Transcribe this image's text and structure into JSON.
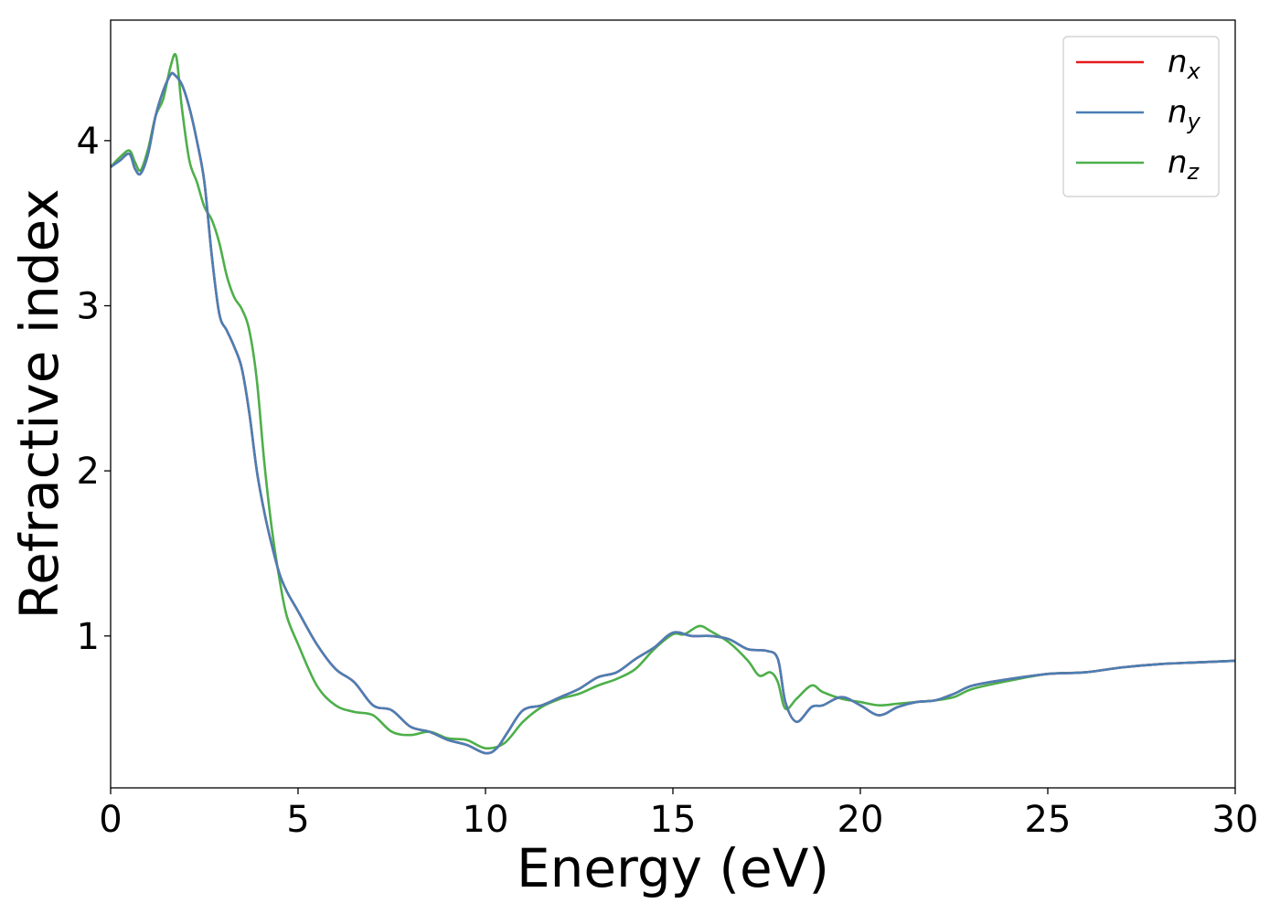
{
  "chart_data": {
    "type": "line",
    "title": "",
    "xlabel": "Energy (eV)",
    "ylabel": "Refractive index",
    "xlim": [
      0,
      30
    ],
    "ylim": [
      0.08,
      4.73
    ],
    "xticks": [
      0,
      5,
      10,
      15,
      20,
      25,
      30
    ],
    "yticks": [
      1,
      2,
      3,
      4
    ],
    "grid": false,
    "legend_position": "top-right",
    "series": [
      {
        "name": "n_x",
        "legend_base": "n",
        "legend_sub": "x",
        "color": "#e41a1c",
        "x": [
          0,
          0.25,
          0.5,
          0.65,
          0.8,
          1.0,
          1.2,
          1.4,
          1.6,
          1.7,
          1.9,
          2.1,
          2.3,
          2.5,
          2.7,
          2.9,
          3.1,
          3.3,
          3.5,
          3.7,
          3.9,
          4.1,
          4.3,
          4.5,
          4.7,
          5.0,
          5.5,
          6.0,
          6.5,
          7.0,
          7.5,
          8.0,
          8.5,
          9.0,
          9.5,
          10.0,
          10.3,
          10.6,
          11.0,
          11.5,
          12.0,
          12.5,
          13.0,
          13.5,
          14.0,
          14.5,
          15.0,
          15.5,
          16.0,
          16.5,
          17.0,
          17.5,
          17.8,
          18.0,
          18.3,
          18.7,
          19.0,
          19.5,
          20.0,
          20.5,
          21.0,
          21.5,
          22.0,
          22.5,
          23.0,
          24.0,
          25.0,
          26.0,
          27.0,
          28.0,
          29.0,
          30.0
        ],
        "y": [
          3.84,
          3.88,
          3.92,
          3.83,
          3.8,
          3.92,
          4.15,
          4.3,
          4.4,
          4.4,
          4.34,
          4.2,
          4.0,
          3.75,
          3.3,
          2.95,
          2.85,
          2.75,
          2.62,
          2.35,
          2.0,
          1.75,
          1.55,
          1.38,
          1.27,
          1.15,
          0.95,
          0.8,
          0.72,
          0.58,
          0.55,
          0.45,
          0.42,
          0.37,
          0.34,
          0.29,
          0.32,
          0.42,
          0.55,
          0.58,
          0.63,
          0.68,
          0.75,
          0.78,
          0.86,
          0.93,
          1.02,
          1.0,
          1.0,
          0.98,
          0.92,
          0.91,
          0.86,
          0.6,
          0.48,
          0.57,
          0.58,
          0.63,
          0.58,
          0.52,
          0.57,
          0.6,
          0.61,
          0.65,
          0.7,
          0.74,
          0.77,
          0.78,
          0.81,
          0.83,
          0.84,
          0.85
        ]
      },
      {
        "name": "n_y",
        "legend_base": "n",
        "legend_sub": "y",
        "color": "#4a7fb5",
        "x": [
          0,
          0.25,
          0.5,
          0.65,
          0.8,
          1.0,
          1.2,
          1.4,
          1.6,
          1.7,
          1.9,
          2.1,
          2.3,
          2.5,
          2.7,
          2.9,
          3.1,
          3.3,
          3.5,
          3.7,
          3.9,
          4.1,
          4.3,
          4.5,
          4.7,
          5.0,
          5.5,
          6.0,
          6.5,
          7.0,
          7.5,
          8.0,
          8.5,
          9.0,
          9.5,
          10.0,
          10.3,
          10.6,
          11.0,
          11.5,
          12.0,
          12.5,
          13.0,
          13.5,
          14.0,
          14.5,
          15.0,
          15.5,
          16.0,
          16.5,
          17.0,
          17.5,
          17.8,
          18.0,
          18.3,
          18.7,
          19.0,
          19.5,
          20.0,
          20.5,
          21.0,
          21.5,
          22.0,
          22.5,
          23.0,
          24.0,
          25.0,
          26.0,
          27.0,
          28.0,
          29.0,
          30.0
        ],
        "y": [
          3.84,
          3.88,
          3.92,
          3.83,
          3.8,
          3.92,
          4.15,
          4.3,
          4.4,
          4.4,
          4.34,
          4.2,
          4.0,
          3.75,
          3.3,
          2.95,
          2.85,
          2.75,
          2.62,
          2.35,
          2.0,
          1.75,
          1.55,
          1.38,
          1.27,
          1.15,
          0.95,
          0.8,
          0.72,
          0.58,
          0.55,
          0.45,
          0.42,
          0.37,
          0.34,
          0.29,
          0.32,
          0.42,
          0.55,
          0.58,
          0.63,
          0.68,
          0.75,
          0.78,
          0.86,
          0.93,
          1.02,
          1.0,
          1.0,
          0.98,
          0.92,
          0.91,
          0.86,
          0.6,
          0.48,
          0.57,
          0.58,
          0.63,
          0.58,
          0.52,
          0.57,
          0.6,
          0.61,
          0.65,
          0.7,
          0.74,
          0.77,
          0.78,
          0.81,
          0.83,
          0.84,
          0.85
        ]
      },
      {
        "name": "n_z",
        "legend_base": "n",
        "legend_sub": "z",
        "color": "#4daf4a",
        "x": [
          0,
          0.25,
          0.5,
          0.65,
          0.8,
          1.0,
          1.2,
          1.4,
          1.6,
          1.75,
          1.9,
          2.1,
          2.3,
          2.5,
          2.7,
          2.9,
          3.1,
          3.3,
          3.5,
          3.7,
          3.9,
          4.1,
          4.3,
          4.5,
          4.7,
          5.0,
          5.5,
          6.0,
          6.5,
          7.0,
          7.5,
          8.0,
          8.5,
          9.0,
          9.5,
          10.0,
          10.5,
          11.0,
          11.5,
          12.0,
          12.5,
          13.0,
          13.5,
          14.0,
          14.5,
          15.0,
          15.3,
          15.7,
          16.0,
          16.5,
          17.0,
          17.3,
          17.6,
          17.8,
          18.0,
          18.3,
          18.7,
          19.0,
          19.5,
          20.0,
          20.5,
          21.0,
          21.5,
          22.0,
          22.5,
          23.0,
          24.0,
          25.0,
          26.0,
          27.0,
          28.0,
          29.0,
          30.0
        ],
        "y": [
          3.84,
          3.9,
          3.94,
          3.87,
          3.82,
          3.95,
          4.15,
          4.25,
          4.45,
          4.51,
          4.2,
          3.88,
          3.75,
          3.6,
          3.52,
          3.38,
          3.18,
          3.05,
          2.98,
          2.85,
          2.55,
          2.05,
          1.65,
          1.35,
          1.12,
          0.95,
          0.7,
          0.58,
          0.54,
          0.52,
          0.42,
          0.4,
          0.42,
          0.38,
          0.37,
          0.32,
          0.35,
          0.48,
          0.57,
          0.62,
          0.65,
          0.7,
          0.74,
          0.8,
          0.92,
          1.01,
          1.01,
          1.06,
          1.03,
          0.96,
          0.85,
          0.76,
          0.78,
          0.72,
          0.56,
          0.62,
          0.7,
          0.66,
          0.62,
          0.6,
          0.58,
          0.59,
          0.6,
          0.61,
          0.63,
          0.68,
          0.73,
          0.77,
          0.78,
          0.81,
          0.83,
          0.84,
          0.85
        ]
      }
    ]
  }
}
